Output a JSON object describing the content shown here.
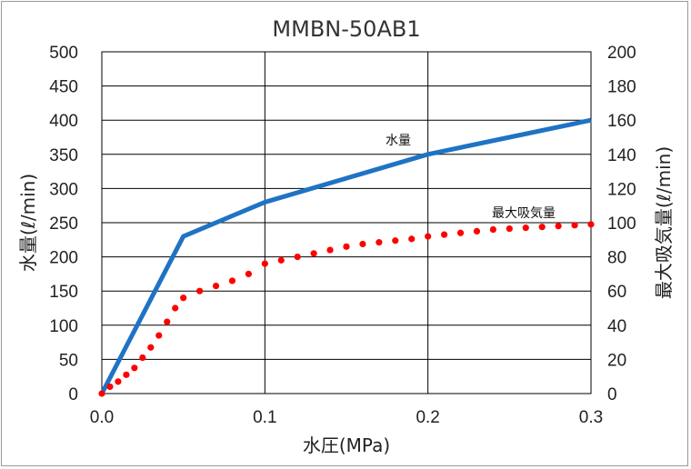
{
  "chart_data": {
    "type": "line",
    "title": "MMBN-50AB1",
    "xlabel": "水圧(MPa)",
    "ylabel_left": "水量(ℓ/min)",
    "ylabel_right": "最大吸気量(ℓ/min)",
    "xlim": [
      0,
      0.3
    ],
    "ylim_left": [
      0,
      500
    ],
    "ylim_right": [
      0,
      200
    ],
    "x_ticks": [
      "0.0",
      "0.1",
      "0.2",
      "0.3"
    ],
    "y_ticks_left": [
      "0",
      "50",
      "100",
      "150",
      "200",
      "250",
      "300",
      "350",
      "400",
      "450",
      "500"
    ],
    "y_ticks_right": [
      "0",
      "20",
      "40",
      "60",
      "80",
      "100",
      "120",
      "140",
      "160",
      "180",
      "200"
    ],
    "grid": true,
    "series": [
      {
        "name": "水量",
        "axis": "left",
        "style": "solid",
        "color": "#1f73c4",
        "x": [
          0,
          0.05,
          0.1,
          0.15,
          0.2,
          0.25,
          0.3
        ],
        "y": [
          0,
          230,
          280,
          315,
          350,
          375,
          400
        ]
      },
      {
        "name": "最大吸気量",
        "axis": "right",
        "style": "dotted",
        "color": "#ff0000",
        "x": [
          0,
          0.005,
          0.01,
          0.015,
          0.02,
          0.025,
          0.03,
          0.035,
          0.04,
          0.045,
          0.05,
          0.06,
          0.07,
          0.08,
          0.09,
          0.1,
          0.11,
          0.12,
          0.13,
          0.14,
          0.15,
          0.16,
          0.17,
          0.18,
          0.19,
          0.2,
          0.21,
          0.22,
          0.23,
          0.24,
          0.25,
          0.26,
          0.27,
          0.28,
          0.29,
          0.3
        ],
        "y": [
          0,
          4,
          7,
          11,
          15,
          21,
          27,
          34,
          42,
          50,
          56,
          60,
          63,
          66,
          70,
          76,
          78,
          80,
          82,
          84,
          86,
          87.5,
          88.5,
          89.5,
          90.5,
          92,
          93,
          94,
          95,
          96,
          96.5,
          97,
          97.5,
          98,
          98.5,
          99
        ]
      }
    ]
  }
}
